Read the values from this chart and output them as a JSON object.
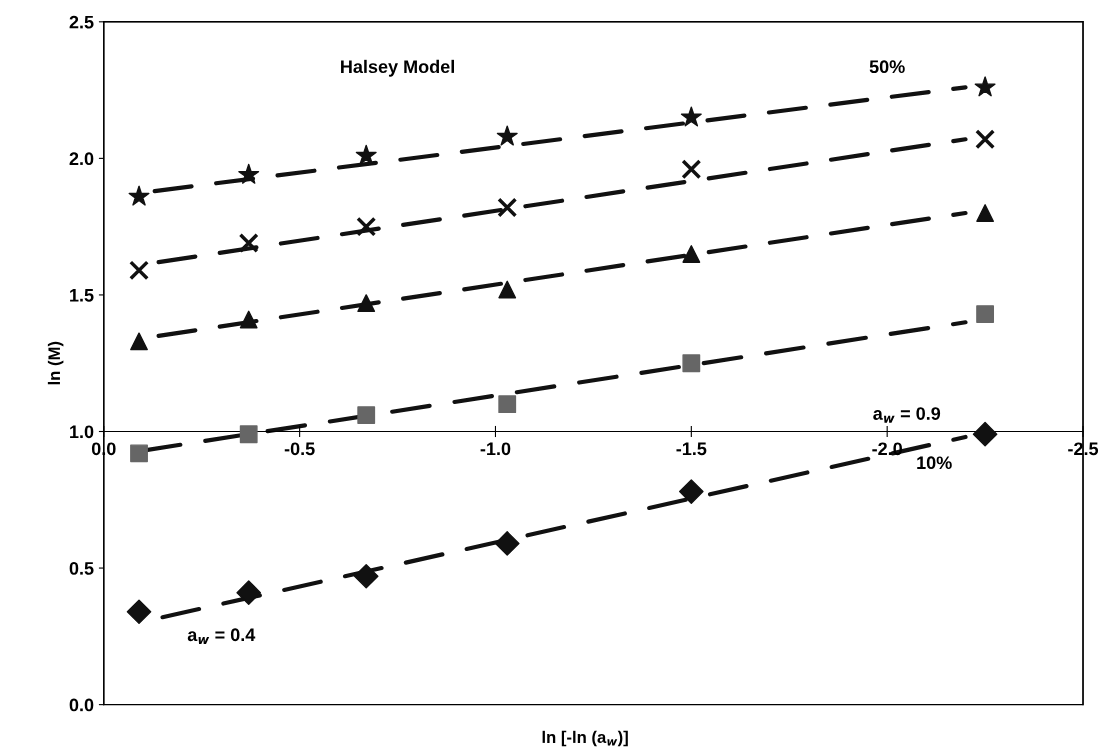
{
  "chart_data": {
    "type": "scatter",
    "title": "Halsey Model",
    "xlabel": "ln [-ln (a$_{w}$)]",
    "ylabel": "ln (M)",
    "xlim": [
      0,
      -2.5
    ],
    "ylim": [
      0,
      2.5
    ],
    "xticks": [
      {
        "value": 0,
        "label": "0.0"
      },
      {
        "value": -0.5,
        "label": "-0.5"
      },
      {
        "value": -1.0,
        "label": "-1.0"
      },
      {
        "value": -1.5,
        "label": "-1.5"
      },
      {
        "value": -2.0,
        "label": "-2.0"
      },
      {
        "value": -2.5,
        "label": "-2.5"
      }
    ],
    "yticks": [
      {
        "value": 0,
        "label": "0.0"
      },
      {
        "value": 0.5,
        "label": "0.5"
      },
      {
        "value": 1.0,
        "label": "1.0"
      },
      {
        "value": 1.5,
        "label": "1.5"
      },
      {
        "value": 2.0,
        "label": "2.0"
      },
      {
        "value": 2.5,
        "label": "2.5"
      }
    ],
    "x": [
      -0.09,
      -0.37,
      -0.67,
      -1.03,
      -1.5,
      -2.25
    ],
    "grid": false,
    "legend": false,
    "series": [
      {
        "marker": "star",
        "color": "#111111",
        "values": [
          1.86,
          1.94,
          2.01,
          2.08,
          2.15,
          2.26
        ]
      },
      {
        "marker": "cross",
        "color": "#111111",
        "values": [
          1.59,
          1.69,
          1.75,
          1.82,
          1.96,
          2.07
        ]
      },
      {
        "marker": "triangle",
        "color": "#111111",
        "values": [
          1.33,
          1.41,
          1.47,
          1.52,
          1.65,
          1.8
        ]
      },
      {
        "marker": "square",
        "color": "#666666",
        "values": [
          0.92,
          0.99,
          1.06,
          1.1,
          1.25,
          1.43
        ]
      },
      {
        "marker": "diamond",
        "color": "#111111",
        "values": [
          0.34,
          0.41,
          0.47,
          0.59,
          0.78,
          0.99
        ]
      },
      {
        "type": "line",
        "line_style": "dashed",
        "color": "#111111",
        "x": [
          -0.13,
          -2.2
        ],
        "values": [
          1.88,
          2.26
        ]
      },
      {
        "type": "line",
        "line_style": "dashed",
        "color": "#111111",
        "x": [
          -0.14,
          -2.2
        ],
        "values": [
          1.62,
          2.07
        ]
      },
      {
        "type": "line",
        "line_style": "dashed",
        "color": "#111111",
        "x": [
          -0.14,
          -2.2
        ],
        "values": [
          1.35,
          1.8
        ]
      },
      {
        "type": "line",
        "line_style": "dashed",
        "color": "#111111",
        "x": [
          -0.1,
          -2.2
        ],
        "values": [
          0.93,
          1.4
        ]
      },
      {
        "type": "line",
        "line_style": "dashed",
        "color": "#111111",
        "x": [
          -0.15,
          -2.2
        ],
        "values": [
          0.32,
          0.98
        ]
      }
    ],
    "annotations": [
      "50%",
      "a$_{w}$ = 0.9",
      "10%",
      "a$_{w}$ = 0.4"
    ]
  }
}
